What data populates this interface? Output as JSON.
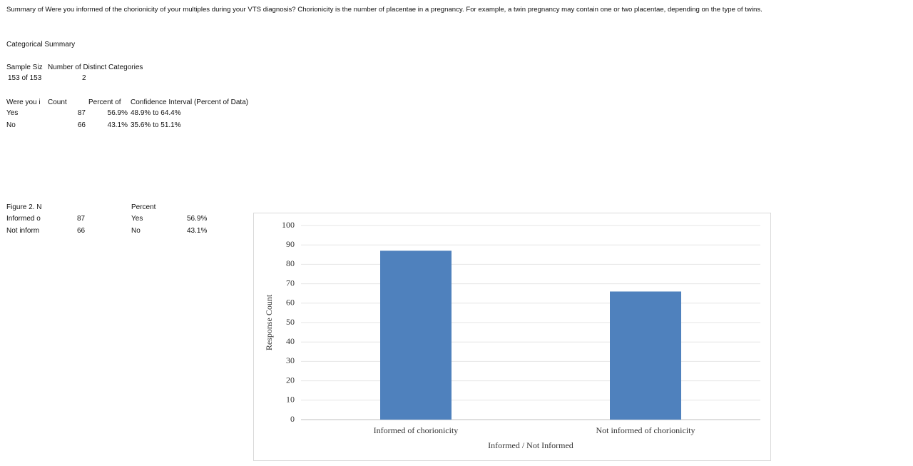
{
  "title": "Summary of Were you informed of the chorionicity of your multiples during your VTS diagnosis? Chorionicity is the number of placentae in a pregnancy. For example, a twin pregnancy may contain one or two placentae, depending on the type of twins.",
  "section": "Categorical Summary",
  "summary": {
    "headers": [
      "Sample Siz",
      "Number of Distinct Categories"
    ],
    "row": [
      "153 of 153",
      "2"
    ]
  },
  "table": {
    "headers": [
      "Were you i",
      "Count",
      "Percent of",
      "Confidence Interval (Percent of Data)"
    ],
    "rows": [
      [
        "Yes",
        87,
        "56.9%",
        "48.9% to 64.4%"
      ],
      [
        "No",
        66,
        "43.1%",
        "35.6% to 51.1%"
      ]
    ]
  },
  "figure_table": {
    "label": "Figure 2. N",
    "percent": "Percent",
    "rows": [
      [
        "Informed o",
        87,
        "Yes",
        "56.9%"
      ],
      [
        "Not inform",
        66,
        "No",
        "43.1%"
      ]
    ]
  },
  "chart_data": {
    "type": "bar",
    "categories": [
      "Informed of chorionicity",
      "Not informed of chorionicity"
    ],
    "values": [
      87,
      66
    ],
    "color": "#4f81bd",
    "ylim": [
      0,
      100
    ],
    "yticks": [
      0,
      10,
      20,
      30,
      40,
      50,
      60,
      70,
      80,
      90,
      100
    ],
    "x_label": "Informed / Not Informed",
    "y_label": "Response Count",
    "grid": true
  }
}
